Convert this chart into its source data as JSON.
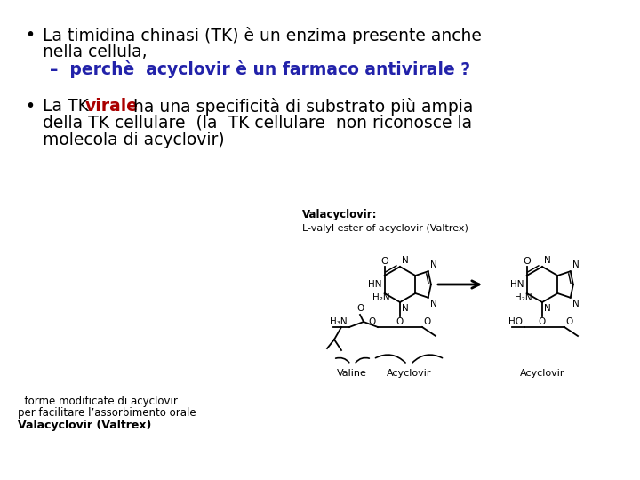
{
  "bg_color": "#ffffff",
  "bullet1_line1": "La timidina chinasi (TK) è un enzima presente anche",
  "bullet1_line2": "nella cellula,",
  "bullet1_line3": "–  perchè  acyclovir è un farmaco antivirale ?",
  "bullet2_line1": "La TK ",
  "bullet2_virale": "virale",
  "bullet2_line2": " ha una specificità di substrato più ampia",
  "bullet2_line3": "della TK cellulare  (la  TK cellulare  non riconosce la",
  "bullet2_line4": "molecola di acyclovir)",
  "chem_label_left": "Valacyclovir:",
  "chem_label_left2": "L-valyl ester of acyclovir (Valtrex)",
  "bottom_line1": "  forme modificate di acyclovir",
  "bottom_line2": "per facilitare l’assorbimento orale",
  "bottom_bold": "Valacyclovir (Valtrex)",
  "chem_sub_valine": "Valine",
  "chem_sub_acyclovir_left": "Acyclovir",
  "chem_sub_acyclovir_right": "Acyclovir",
  "blue_color": "#2222aa",
  "red_color": "#aa0000",
  "black_color": "#000000",
  "bullet_fs": 13.5,
  "sub_fs": 9
}
